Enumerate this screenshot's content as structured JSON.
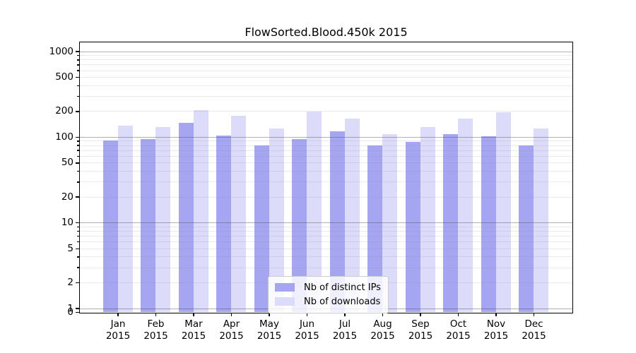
{
  "chart_data": {
    "type": "bar",
    "title": "FlowSorted.Blood.450k 2015",
    "categories": [
      "Jan 2015",
      "Feb 2015",
      "Mar 2015",
      "Apr 2015",
      "May 2015",
      "Jun 2015",
      "Jul 2015",
      "Aug 2015",
      "Sep 2015",
      "Oct 2015",
      "Nov 2015",
      "Dec 2015"
    ],
    "series": [
      {
        "name": "Nb of distinct IPs",
        "color": "#a5a5f2",
        "values": [
          90,
          95,
          145,
          103,
          80,
          94,
          117,
          79,
          87,
          107,
          101,
          79
        ]
      },
      {
        "name": "Nb of downloads",
        "color": "#dcdcfa",
        "values": [
          134,
          130,
          205,
          177,
          125,
          196,
          163,
          108,
          131,
          164,
          195,
          126
        ]
      }
    ],
    "yscale": "log",
    "yticks": [
      1000,
      500,
      200,
      100,
      50,
      20,
      10,
      5,
      2,
      1,
      0
    ],
    "ylim": [
      0,
      1295
    ],
    "xlabel": "",
    "ylabel": "",
    "grid": "horizontal major (decades) + minor (log subs), drawn over bars",
    "legend_position": "lower center inside plot"
  },
  "colors": {
    "major_grid": "#b2b2b2",
    "minor_grid": "#e9e9e9",
    "axis": "#000000",
    "background": "#ffffff"
  }
}
